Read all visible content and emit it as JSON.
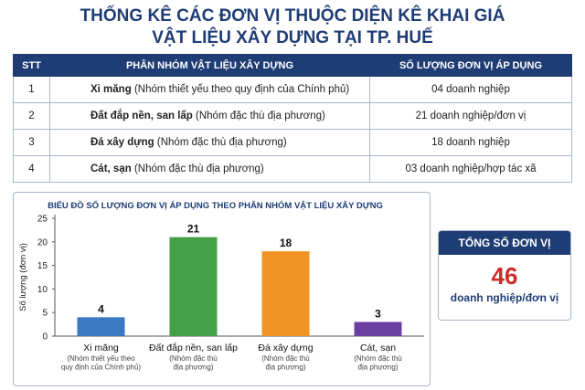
{
  "title_line1": "THỐNG KÊ CÁC ĐƠN VỊ THUỘC DIỆN KÊ KHAI GIÁ",
  "title_line2": "VẬT LIỆU XÂY DỰNG TẠI TP. HUẾ",
  "table": {
    "headers": [
      "STT",
      "PHÂN NHÓM VẬT LIỆU XÂY DỰNG",
      "SỐ LƯỢNG ĐƠN VỊ ÁP DỤNG"
    ],
    "rows": [
      {
        "stt": "1",
        "name": "Xi măng",
        "note": "(Nhóm thiết yếu theo quy định của Chính phủ)",
        "count": "04 doanh nghiệp"
      },
      {
        "stt": "2",
        "name": "Đất đắp nền, san lấp",
        "note": "(Nhóm đặc thù địa phương)",
        "count": "21 doanh nghiệp/đơn vị"
      },
      {
        "stt": "3",
        "name": "Đá xây dựng",
        "note": "(Nhóm đặc thù địa phương)",
        "count": "18 doanh nghiệp"
      },
      {
        "stt": "4",
        "name": "Cát, sạn",
        "note": "(Nhóm đặc thù địa phương)",
        "count": "03 doanh nghiệp/hợp tác xã"
      }
    ]
  },
  "total": {
    "label": "TỔNG SỐ ĐƠN VỊ",
    "value": "46",
    "unit": "doanh nghiệp/đơn vị"
  },
  "chart_data": {
    "type": "bar",
    "title": "BIỂU ĐỒ SỐ LƯỢNG ĐƠN VỊ ÁP DỤNG THEO PHÂN NHÓM VẬT LIỆU XÂY DỰNG",
    "ylabel": "Số lượng (đơn vị)",
    "xlabel": "",
    "ylim": [
      0,
      25
    ],
    "yticks": [
      "0",
      "5",
      "10",
      "15",
      "20",
      "25"
    ],
    "grid": false,
    "categories": [
      "Xi măng",
      "Đất đắp nền, san lấp",
      "Đá xây dựng",
      "Cát, sạn"
    ],
    "category_notes": [
      [
        "(Nhóm thiết yếu theo",
        "quy định của Chính phủ)"
      ],
      [
        "(Nhóm đặc thù",
        "địa phương)"
      ],
      [
        "(Nhóm đặc thù",
        "địa phương)"
      ],
      [
        "(Nhóm đặc thù",
        "địa phương)"
      ]
    ],
    "values": [
      4,
      21,
      18,
      3
    ],
    "colors": [
      "#3a78c2",
      "#43a047",
      "#f29423",
      "#6a3fa0"
    ]
  }
}
